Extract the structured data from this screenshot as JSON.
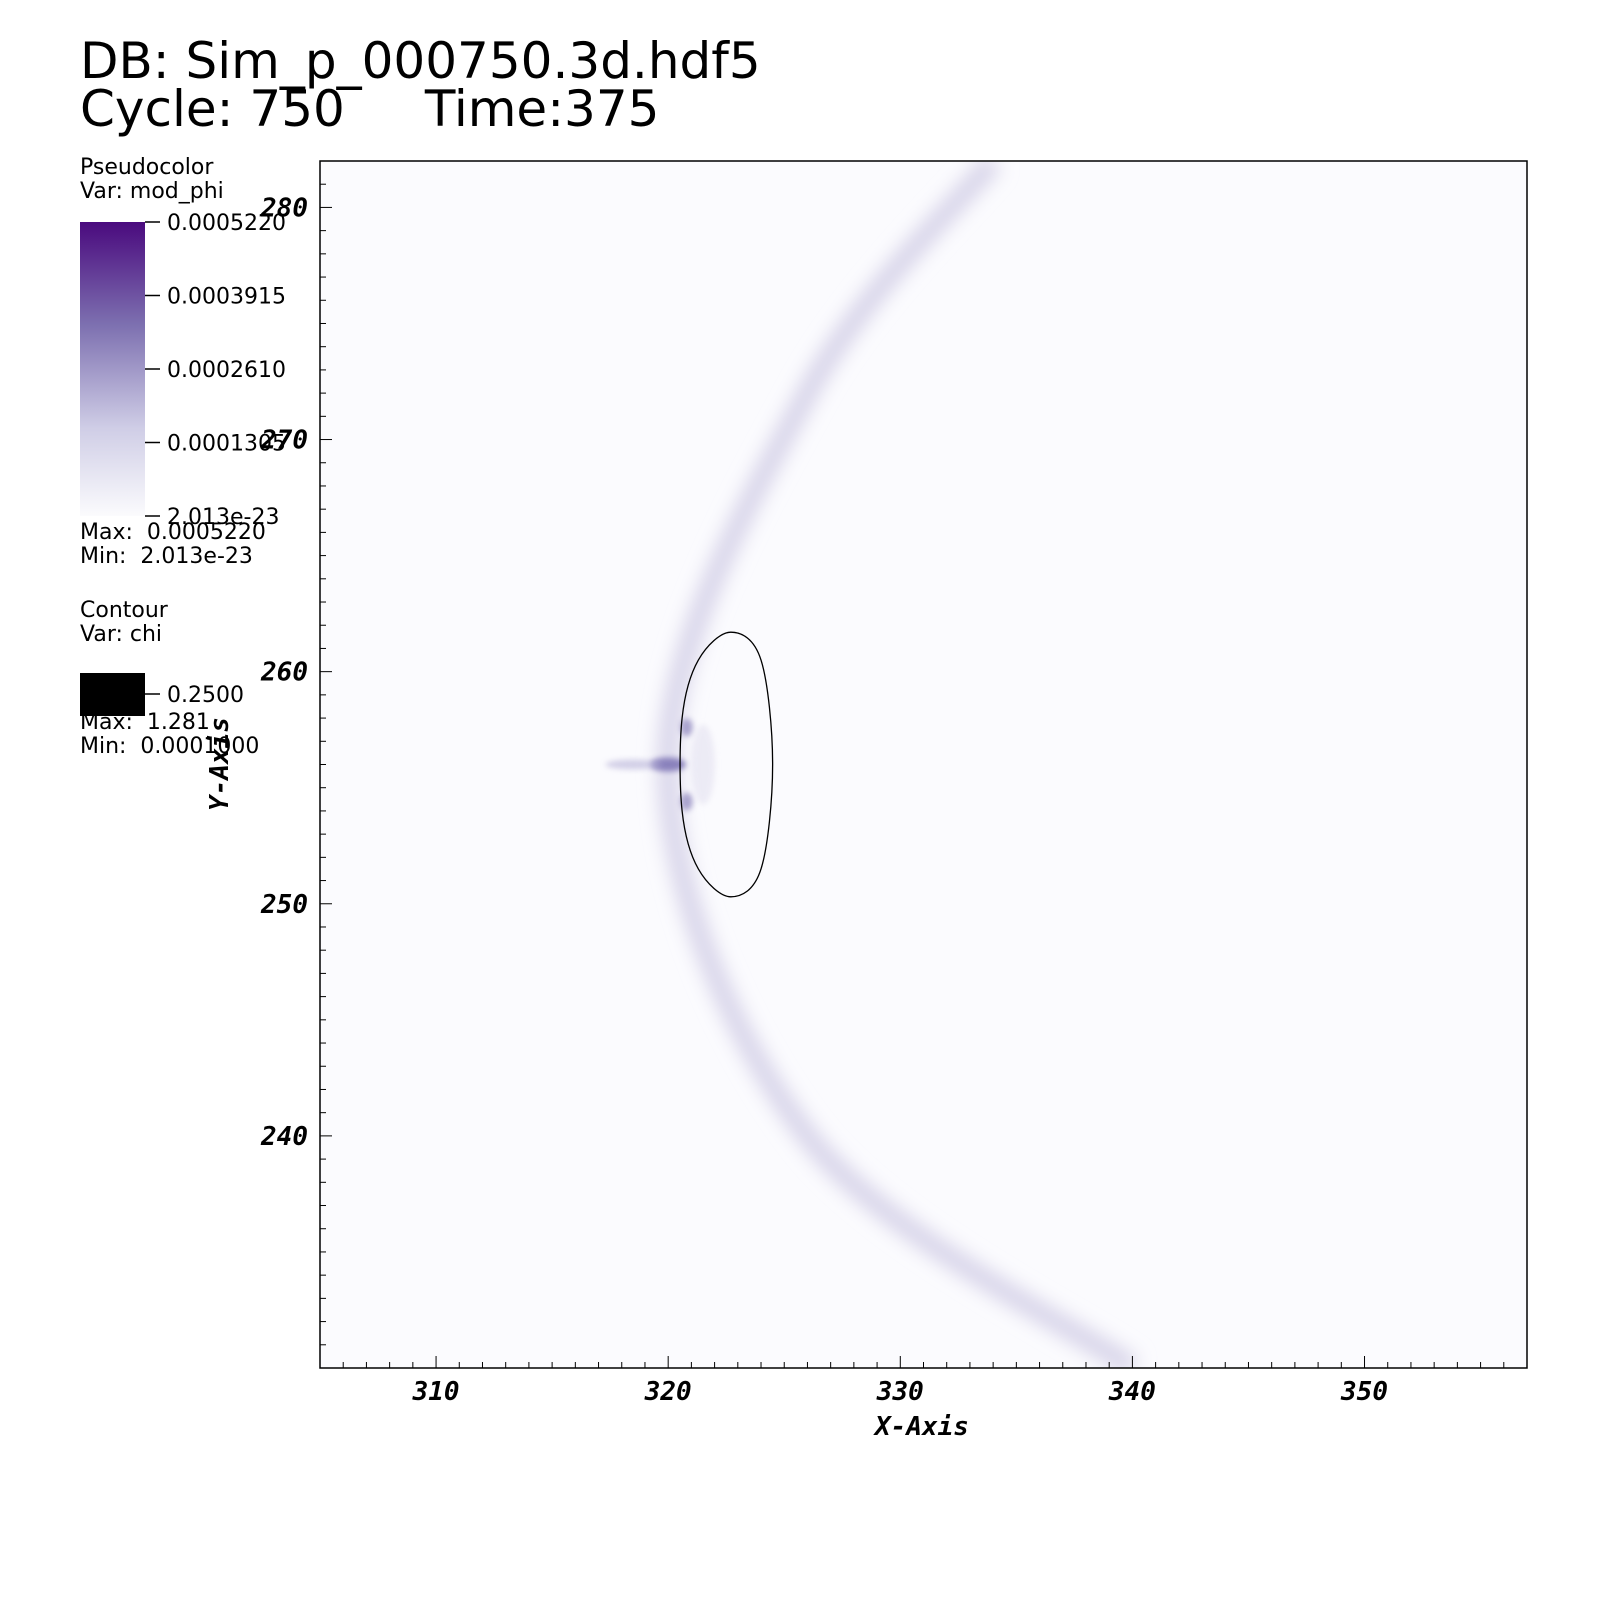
{
  "header": {
    "db_label": "DB: Sim_p_000750.3d.hdf5",
    "cycle_label": "Cycle: 750",
    "time_label": "Time:375"
  },
  "legend_pseudocolor": {
    "title": "Pseudocolor",
    "var": "Var: mod_phi",
    "ticks": [
      "0.0005220",
      "0.0003915",
      "0.0002610",
      "0.0001305",
      "2.013e-23"
    ],
    "max": "Max:  0.0005220",
    "min": "Min:  2.013e-23",
    "color_top": "#4a0a7e",
    "color_bottom": "#fbfbfd"
  },
  "legend_contour": {
    "title": "Contour",
    "var": "Var: chi",
    "level": "0.2500",
    "max": "Max:  1.281",
    "min": "Min:  0.0001000",
    "color": "#000000"
  },
  "chart_data": {
    "type": "heatmap",
    "xlabel": "X-Axis",
    "ylabel": "Y-Axis",
    "xlim": [
      305,
      357
    ],
    "ylim": [
      230,
      282
    ],
    "x_ticks": [
      310,
      320,
      330,
      340,
      350
    ],
    "y_ticks": [
      240,
      250,
      260,
      270,
      280
    ],
    "field": "mod_phi",
    "wavefront": {
      "description_points": [
        [
          334,
          282
        ],
        [
          326,
          272
        ],
        [
          320,
          256
        ],
        [
          326,
          240
        ],
        [
          340,
          230
        ]
      ]
    },
    "contour_chi_0.25": [
      [
        322.7,
        261.7
      ],
      [
        324.0,
        260.5
      ],
      [
        324.5,
        256.0
      ],
      [
        324.0,
        251.5
      ],
      [
        322.7,
        250.3
      ],
      [
        321.3,
        251.5
      ],
      [
        320.6,
        254.0
      ],
      [
        320.6,
        258.0
      ],
      [
        321.3,
        260.5
      ]
    ]
  }
}
